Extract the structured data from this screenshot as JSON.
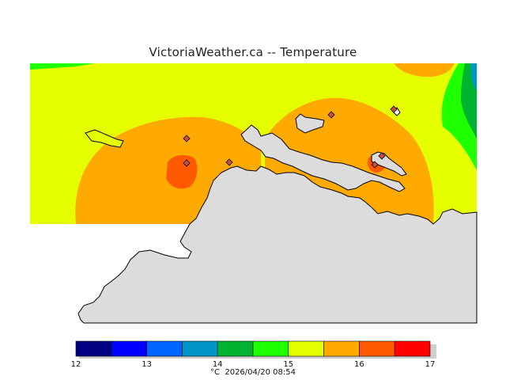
{
  "title": "VictoriaWeather.ca  --  Temperature",
  "legend": {
    "ticks": [
      "12",
      "13",
      "14",
      "15",
      "16",
      "17"
    ],
    "bands": [
      {
        "from": 12.0,
        "to": 12.5,
        "color": "#000080"
      },
      {
        "from": 12.5,
        "to": 13.0,
        "color": "#0000ff"
      },
      {
        "from": 13.0,
        "to": 13.5,
        "color": "#0064ff"
      },
      {
        "from": 13.5,
        "to": 14.0,
        "color": "#0096c8"
      },
      {
        "from": 14.0,
        "to": 14.5,
        "color": "#00b432"
      },
      {
        "from": 14.5,
        "to": 15.0,
        "color": "#1eff00"
      },
      {
        "from": 15.0,
        "to": 15.5,
        "color": "#e6ff00"
      },
      {
        "from": 15.5,
        "to": 16.0,
        "color": "#ffaa00"
      },
      {
        "from": 16.0,
        "to": 16.5,
        "color": "#ff5a00"
      },
      {
        "from": 16.5,
        "to": 17.0,
        "color": "#ff0000"
      }
    ],
    "unit": "°C",
    "timestamp": "2026/04/20 08:54"
  },
  "colors": {
    "land_gray": "#dcdcdc",
    "coastline": "#000000",
    "station_marker": "#c8503c"
  },
  "map": {
    "stations": 7,
    "features": [
      "temperature-contour-field",
      "land-mass",
      "coastline",
      "weather-station-markers"
    ]
  }
}
